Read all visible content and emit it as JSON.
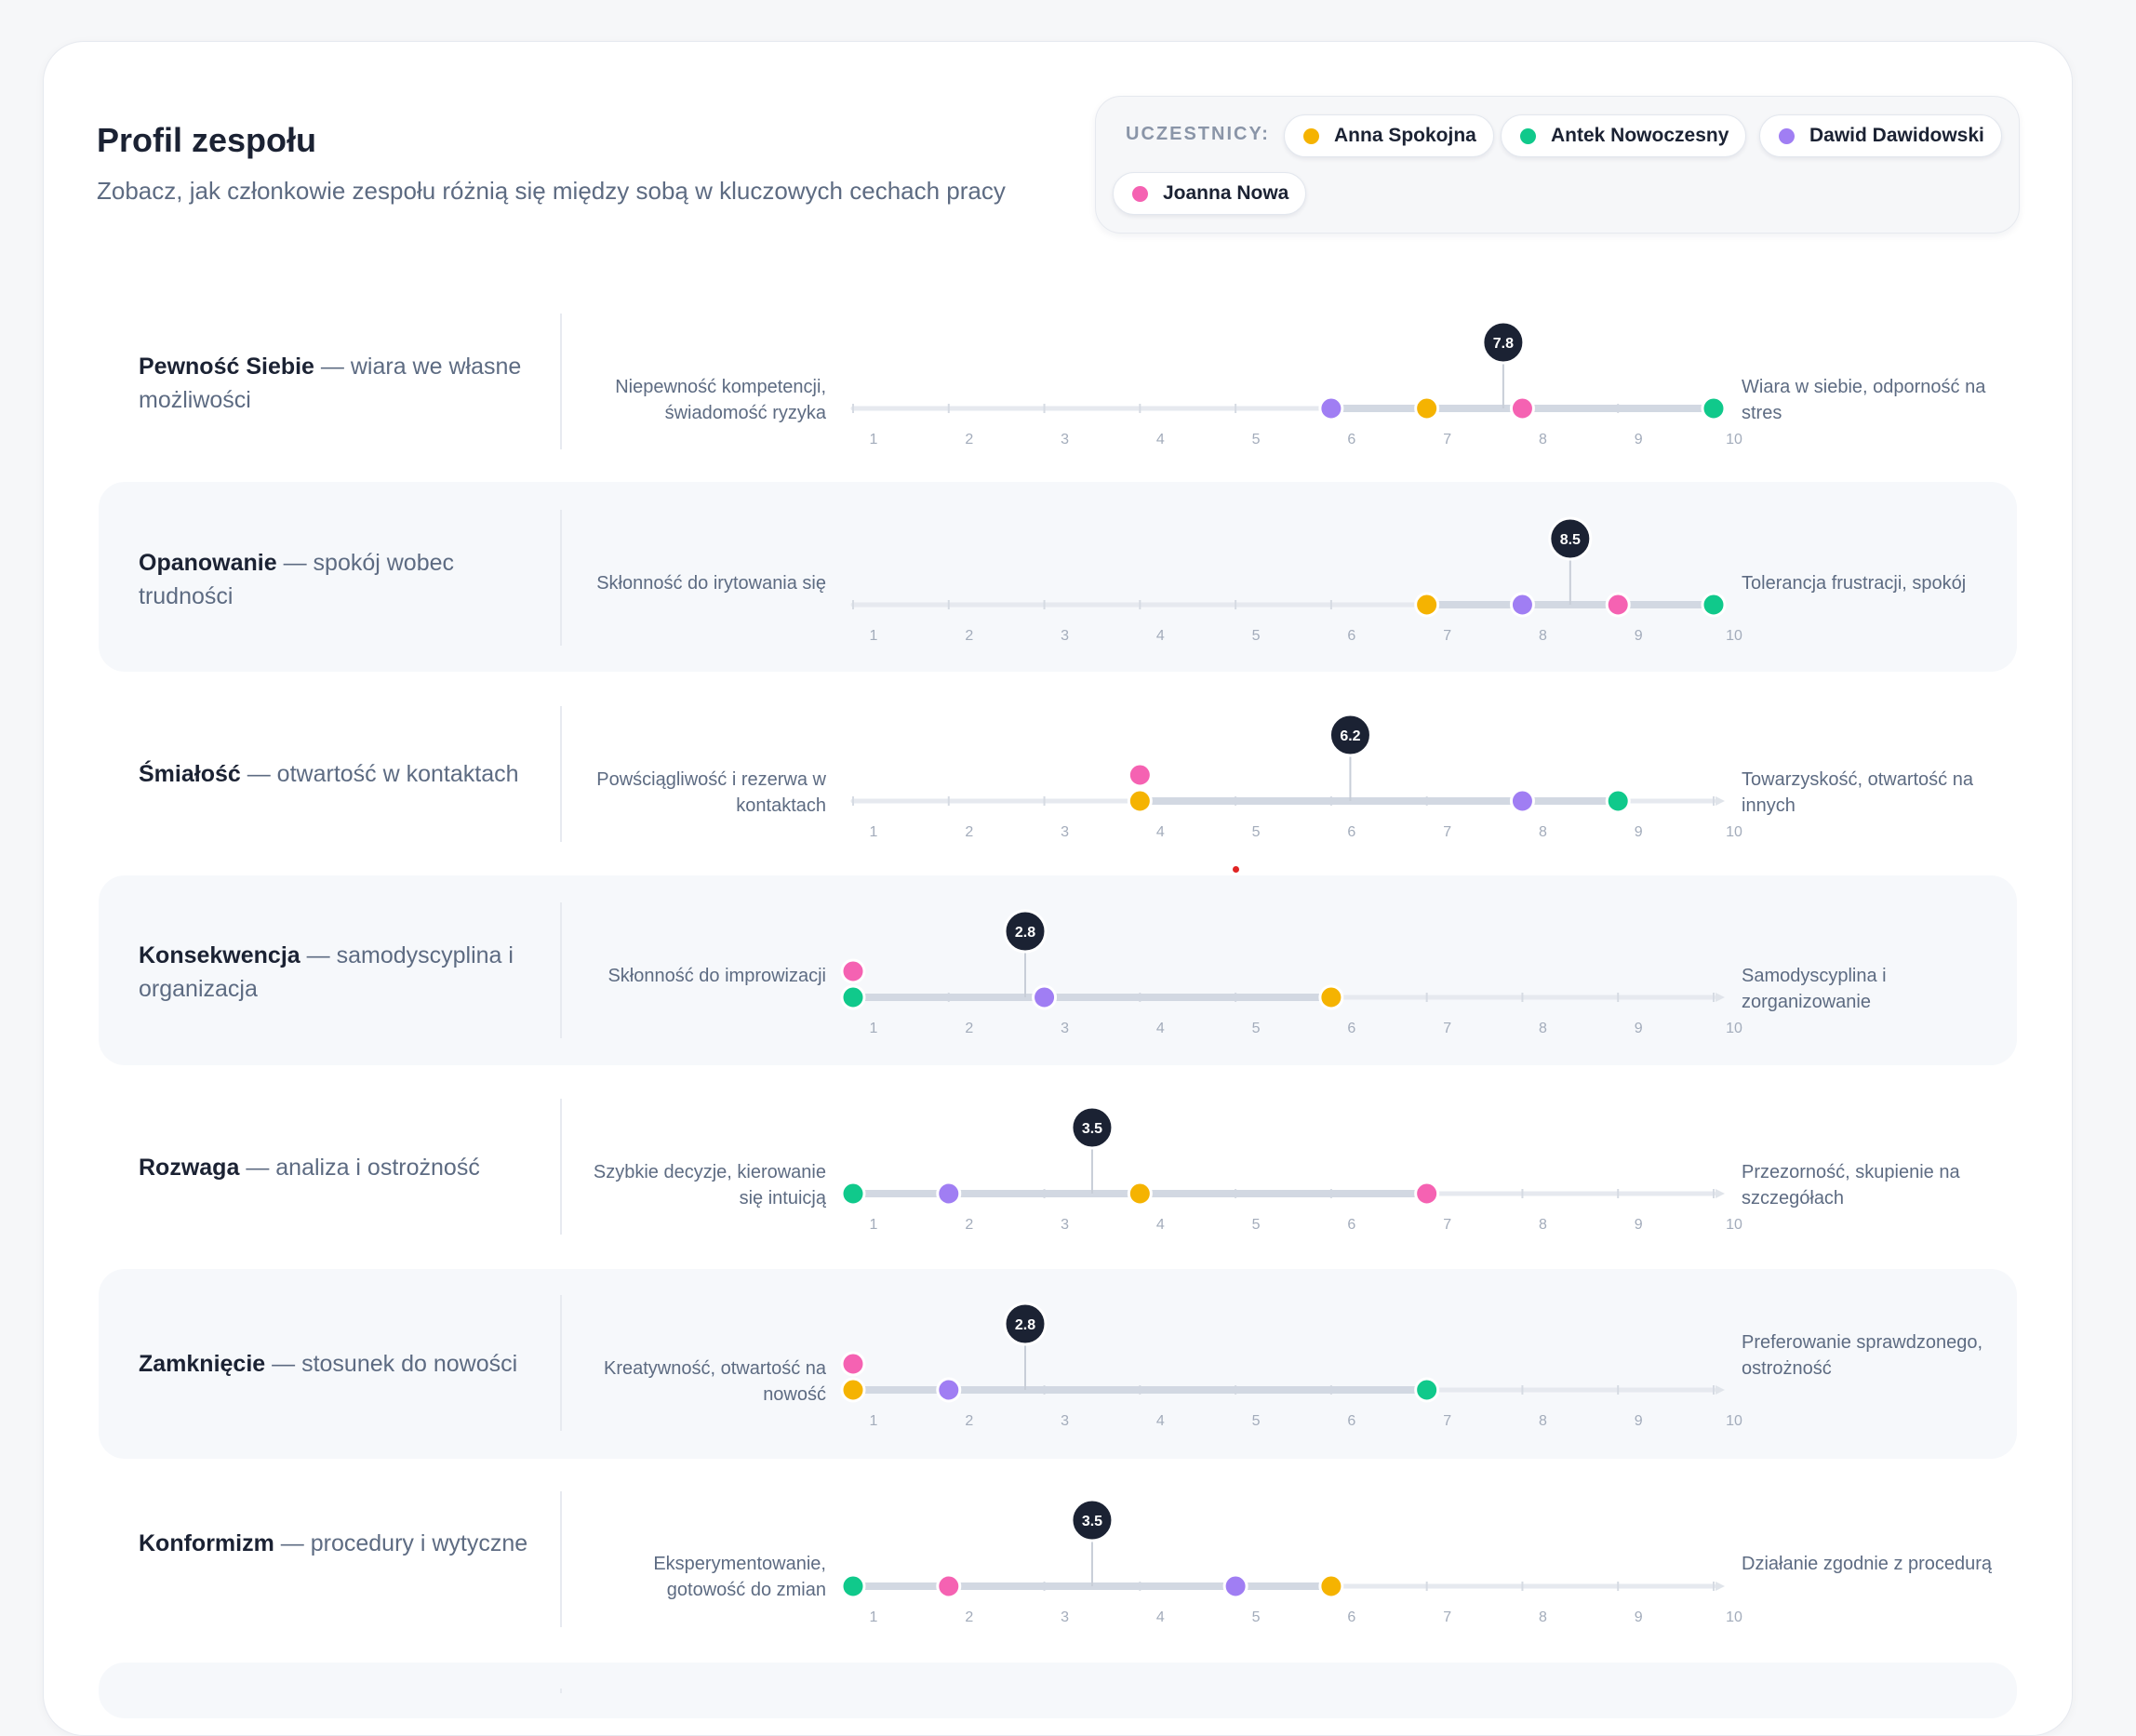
{
  "header": {
    "title": "Profil zespołu",
    "subtitle": "Zobacz, jak członkowie zespołu różnią się między sobą w kluczowych cechach pracy"
  },
  "legend": {
    "label": "UCZESTNICY:",
    "participants": [
      {
        "name": "Anna Spokojna",
        "color": "#f5b301"
      },
      {
        "name": "Antek Nowoczesny",
        "color": "#10c98b"
      },
      {
        "name": "Dawid Dawidowski",
        "color": "#a07ef3"
      },
      {
        "name": "Joanna Nowa",
        "color": "#f562b2"
      }
    ]
  },
  "scale": {
    "min": 1,
    "max": 10,
    "ticks": [
      "1",
      "2",
      "3",
      "4",
      "5",
      "6",
      "7",
      "8",
      "9",
      "10"
    ]
  },
  "traits": [
    {
      "name": "Pewność Siebie",
      "desc": "— wiara we własne możliwości",
      "left": "Niepewność kompetencji, świadomość ryzyka",
      "right": "Wiara w siebie, odporność na stres",
      "avg": 7.8,
      "avg_label": "7.8",
      "values": {
        "anna": 7,
        "antek": 10,
        "dawid": 6,
        "joanna": 8
      }
    },
    {
      "name": "Opanowanie",
      "desc": "— spokój wobec trudności",
      "left": "Skłonność do irytowania się",
      "right": "Tolerancja frustracji, spokój",
      "avg": 8.5,
      "avg_label": "8.5",
      "values": {
        "anna": 7,
        "antek": 10,
        "dawid": 8,
        "joanna": 9
      }
    },
    {
      "name": "Śmiałość",
      "desc": "— otwartość w kontaktach",
      "left": "Powściągliwość i rezerwa w kontaktach",
      "right": "Towarzyskość, otwartość na innych",
      "avg": 6.2,
      "avg_label": "6.2",
      "values": {
        "anna": 4,
        "antek": 9,
        "dawid": 8,
        "joanna": 4
      }
    },
    {
      "name": "Konsekwencja",
      "desc": "— samodyscyplina i organizacja",
      "left": "Skłonność do improwizacji",
      "right": "Samodyscyplina i zorganizowanie",
      "avg": 2.8,
      "avg_label": "2.8",
      "values": {
        "anna": 6,
        "antek": 1,
        "dawid": 3,
        "joanna": 1
      }
    },
    {
      "name": "Rozwaga",
      "desc": "— analiza i ostrożność",
      "left": "Szybkie decyzje, kierowanie się intuicją",
      "right": "Przezorność, skupienie na szczegółach",
      "avg": 3.5,
      "avg_label": "3.5",
      "values": {
        "anna": 4,
        "antek": 1,
        "dawid": 2,
        "joanna": 7
      }
    },
    {
      "name": "Zamknięcie",
      "desc": "— stosunek do nowości",
      "left": "Kreatywność, otwartość na nowość",
      "right": "Preferowanie sprawdzonego, ostrożność",
      "avg": 2.8,
      "avg_label": "2.8",
      "values": {
        "anna": 1,
        "antek": 7,
        "dawid": 2,
        "joanna": 1
      }
    },
    {
      "name": "Konformizm",
      "desc": "— procedury i wytyczne",
      "left": "Eksperymentowanie, gotowość do zmian",
      "right": "Działanie zgodnie z procedurą",
      "avg": 3.5,
      "avg_label": "3.5",
      "values": {
        "anna": 6,
        "antek": 1,
        "dawid": 5,
        "joanna": 2
      }
    }
  ]
}
